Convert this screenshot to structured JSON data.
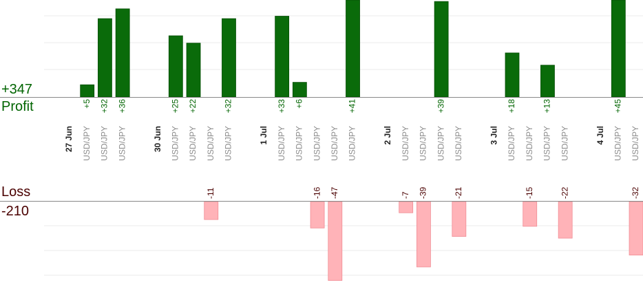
{
  "summary": {
    "profit_total": "+347",
    "profit_label": "Profit",
    "loss_label": "Loss",
    "loss_total": "-210"
  },
  "colors": {
    "profit_bar": "#0a6b0a",
    "profit_text": "#006400",
    "loss_bar": "#ffb3b8",
    "loss_text": "#4a0000",
    "symbol_text": "#8c8c8c",
    "date_text": "#222222",
    "gridline": "#ebebeb",
    "baseline": "#888888"
  },
  "chart_data": {
    "type": "bar",
    "title": "",
    "grid": true,
    "profit_ylim": [
      0,
      36
    ],
    "loss_ylim": [
      0,
      30
    ],
    "date_groups": [
      "27 Jun",
      "30 Jun",
      "1 Jul",
      "2 Jul",
      "3 Jul",
      "4 Jul"
    ],
    "slots": [
      {
        "kind": "date",
        "label": "27 Jun"
      },
      {
        "kind": "trade",
        "symbol": "USD/JPY",
        "value": 5,
        "label": "+5"
      },
      {
        "kind": "trade",
        "symbol": "USD/JPY",
        "value": 32,
        "label": "+32"
      },
      {
        "kind": "trade",
        "symbol": "USD/JPY",
        "value": 36,
        "label": "+36"
      },
      {
        "kind": "gap"
      },
      {
        "kind": "date",
        "label": "30 Jun"
      },
      {
        "kind": "trade",
        "symbol": "USD/JPY",
        "value": 25,
        "label": "+25"
      },
      {
        "kind": "trade",
        "symbol": "USD/JPY",
        "value": 22,
        "label": "+22"
      },
      {
        "kind": "trade",
        "symbol": "USD/JPY",
        "value": -11,
        "label": "-11"
      },
      {
        "kind": "trade",
        "symbol": "USD/JPY",
        "value": 32,
        "label": "+32"
      },
      {
        "kind": "gap"
      },
      {
        "kind": "date",
        "label": "1 Jul"
      },
      {
        "kind": "trade",
        "symbol": "USD/JPY",
        "value": 33,
        "label": "+33"
      },
      {
        "kind": "trade",
        "symbol": "USD/JPY",
        "value": 6,
        "label": "+6"
      },
      {
        "kind": "trade",
        "symbol": "USD/JPY",
        "value": -16,
        "label": "-16"
      },
      {
        "kind": "trade",
        "symbol": "USD/JPY",
        "value": -47,
        "label": "-47"
      },
      {
        "kind": "trade",
        "symbol": "USD/JPY",
        "value": 41,
        "label": "+41"
      },
      {
        "kind": "gap"
      },
      {
        "kind": "date",
        "label": "2 Jul"
      },
      {
        "kind": "trade",
        "symbol": "USD/JPY",
        "value": -7,
        "label": "-7"
      },
      {
        "kind": "trade",
        "symbol": "USD/JPY",
        "value": -39,
        "label": "-39"
      },
      {
        "kind": "trade",
        "symbol": "USD/JPY",
        "value": 39,
        "label": "+39"
      },
      {
        "kind": "trade",
        "symbol": "USD/JPY",
        "value": -21,
        "label": "-21"
      },
      {
        "kind": "gap"
      },
      {
        "kind": "date",
        "label": "3 Jul"
      },
      {
        "kind": "trade",
        "symbol": "USD/JPY",
        "value": 18,
        "label": "+18"
      },
      {
        "kind": "trade",
        "symbol": "USD/JPY",
        "value": -15,
        "label": "-15"
      },
      {
        "kind": "trade",
        "symbol": "USD/JPY",
        "value": 13,
        "label": "+13"
      },
      {
        "kind": "trade",
        "symbol": "USD/JPY",
        "value": -22,
        "label": "-22"
      },
      {
        "kind": "gap"
      },
      {
        "kind": "date",
        "label": "4 Jul"
      },
      {
        "kind": "trade",
        "symbol": "USD/JPY",
        "value": 45,
        "label": "+45"
      },
      {
        "kind": "trade",
        "symbol": "USD/JPY",
        "value": -32,
        "label": "-32"
      }
    ]
  }
}
